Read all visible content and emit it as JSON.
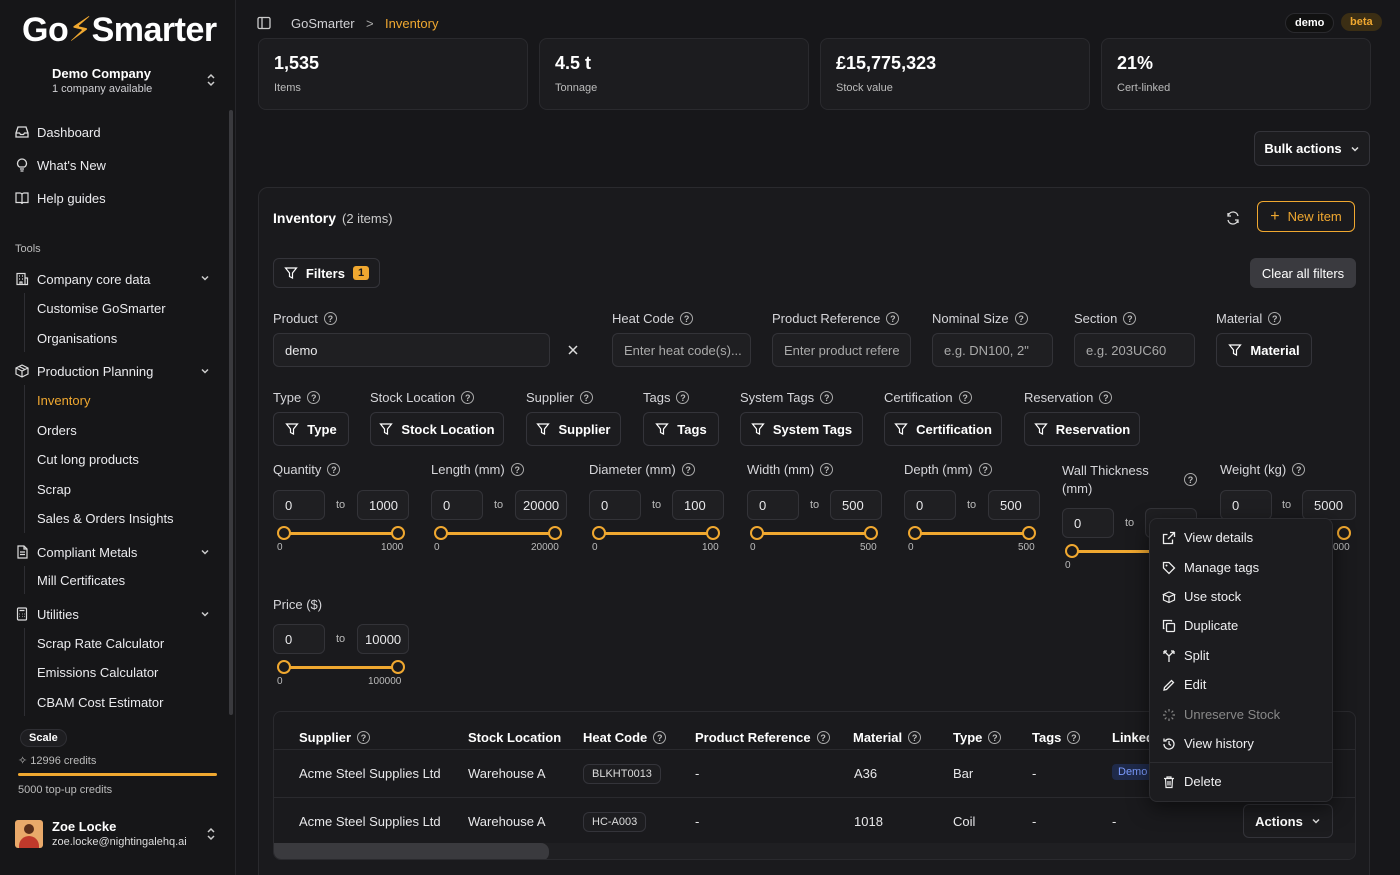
{
  "brand": {
    "logo_pre": "Go",
    "logo_bolt": "⚡",
    "logo_post": "Smarter",
    "accent": "#f0a830"
  },
  "company": {
    "name": "Demo Company",
    "subtitle": "1 company available"
  },
  "sidebar": {
    "main": [
      {
        "label": "Dashboard"
      },
      {
        "label": "What's New"
      },
      {
        "label": "Help guides"
      }
    ],
    "tools_label": "Tools",
    "groups": [
      {
        "label": "Company core data",
        "items": [
          "Customise GoSmarter",
          "Organisations"
        ]
      },
      {
        "label": "Production Planning",
        "items": [
          "Inventory",
          "Orders",
          "Cut long products",
          "Scrap",
          "Sales & Orders Insights"
        ]
      },
      {
        "label": "Compliant Metals",
        "items": [
          "Mill Certificates"
        ]
      },
      {
        "label": "Utilities",
        "items": [
          "Scrap Rate Calculator",
          "Emissions Calculator",
          "CBAM Cost Estimator"
        ]
      }
    ],
    "plan": "Scale",
    "credits": "12996 credits",
    "topup": "5000 top-up credits",
    "user": {
      "name": "Zoe Locke",
      "email": "zoe.locke@nightingalehq.ai"
    }
  },
  "header": {
    "crumb_root": "GoSmarter",
    "crumb_sep": ">",
    "crumb_current": "Inventory",
    "badge_demo": "demo",
    "badge_beta": "beta"
  },
  "stats": [
    {
      "value": "1,535",
      "label": "Items"
    },
    {
      "value": "4.5 t",
      "label": "Tonnage"
    },
    {
      "value": "£15,775,323",
      "label": "Stock value"
    },
    {
      "value": "21%",
      "label": "Cert-linked"
    }
  ],
  "bulk_actions": "Bulk actions",
  "inventory": {
    "title": "Inventory",
    "count": "(2 items)",
    "new_item": "New item",
    "filters_label": "Filters",
    "filters_count": "1",
    "clear_filters": "Clear all filters"
  },
  "filters": {
    "product": {
      "label": "Product",
      "value": "demo"
    },
    "heat_code": {
      "label": "Heat Code",
      "placeholder": "Enter heat code(s)..."
    },
    "product_ref": {
      "label": "Product Reference",
      "placeholder": "Enter product refere"
    },
    "nominal_size": {
      "label": "Nominal Size",
      "placeholder": "e.g. DN100, 2\""
    },
    "section": {
      "label": "Section",
      "placeholder": "e.g. 203UC60"
    },
    "material": {
      "label": "Material",
      "button": "Material"
    },
    "type": {
      "label": "Type",
      "button": "Type"
    },
    "stock_location": {
      "label": "Stock Location",
      "button": "Stock Location"
    },
    "supplier": {
      "label": "Supplier",
      "button": "Supplier"
    },
    "tags": {
      "label": "Tags",
      "button": "Tags"
    },
    "system_tags": {
      "label": "System Tags",
      "button": "System Tags"
    },
    "certification": {
      "label": "Certification",
      "button": "Certification"
    },
    "reservation": {
      "label": "Reservation",
      "button": "Reservation"
    },
    "to_label": "to",
    "ranges": [
      {
        "label": "Quantity",
        "min": "0",
        "max": "1000"
      },
      {
        "label": "Length (mm)",
        "min": "0",
        "max": "20000"
      },
      {
        "label": "Diameter (mm)",
        "min": "0",
        "max": "100"
      },
      {
        "label": "Width (mm)",
        "min": "0",
        "max": "500"
      },
      {
        "label": "Depth (mm)",
        "min": "0",
        "max": "500"
      },
      {
        "label": "Wall Thickness (mm)",
        "min": "0",
        "max": ""
      },
      {
        "label": "Weight (kg)",
        "min": "0",
        "max": "5000"
      },
      {
        "label": "Price ($)",
        "min": "0",
        "max": "10000"
      }
    ],
    "tick_labels": {
      "weight_max_partial": "000",
      "price_max": "100000"
    }
  },
  "table": {
    "headers": [
      "Supplier",
      "Stock Location",
      "Heat Code",
      "Product Reference",
      "Material",
      "Type",
      "Tags",
      "Linked"
    ],
    "rows": [
      {
        "supplier": "Acme Steel Supplies Ltd",
        "location": "Warehouse A",
        "heat": "BLKHT0013",
        "ref": "-",
        "material": "A36",
        "type": "Bar",
        "tags": "-",
        "linked": "Demo"
      },
      {
        "supplier": "Acme Steel Supplies Ltd",
        "location": "Warehouse A",
        "heat": "HC-A003",
        "ref": "-",
        "material": "1018",
        "type": "Coil",
        "tags": "-",
        "linked": "-"
      }
    ],
    "actions_label": "Actions"
  },
  "context_menu": {
    "items": [
      "View details",
      "Manage tags",
      "Use stock",
      "Duplicate",
      "Split",
      "Edit",
      "Unreserve Stock",
      "View history"
    ],
    "delete": "Delete"
  }
}
